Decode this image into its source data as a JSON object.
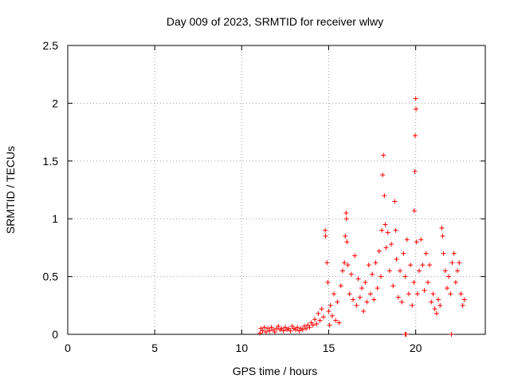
{
  "chart_data": {
    "type": "scatter",
    "title": "Day 009 of 2023, SRMTID for receiver wlwy",
    "xlabel": "GPS time / hours",
    "ylabel": "SRMTID / TECUs",
    "xlim": [
      0,
      24
    ],
    "ylim": [
      0,
      2.5
    ],
    "xticks": [
      0,
      5,
      10,
      15,
      20
    ],
    "xtick_labels": [
      "0",
      "5",
      "10",
      "15",
      "20"
    ],
    "yticks": [
      0,
      0.5,
      1,
      1.5,
      2,
      2.5
    ],
    "ytick_labels": [
      "0",
      "0.5",
      "1",
      "1.5",
      "2",
      "2.5"
    ],
    "grid": true,
    "marker": "+",
    "color": "#ff0000",
    "series": [
      {
        "name": "SRMTID",
        "points": [
          [
            11.05,
            0.01
          ],
          [
            11.1,
            0.05
          ],
          [
            11.2,
            0.03
          ],
          [
            11.3,
            0.06
          ],
          [
            11.4,
            0.02
          ],
          [
            11.5,
            0.05
          ],
          [
            11.6,
            0.03
          ],
          [
            11.7,
            0.06
          ],
          [
            11.8,
            0.04
          ],
          [
            11.9,
            0.02
          ],
          [
            12.0,
            0.05
          ],
          [
            12.1,
            0.07
          ],
          [
            12.2,
            0.04
          ],
          [
            12.3,
            0.05
          ],
          [
            12.4,
            0.03
          ],
          [
            12.5,
            0.06
          ],
          [
            12.6,
            0.04
          ],
          [
            12.7,
            0.05
          ],
          [
            12.8,
            0.03
          ],
          [
            12.9,
            0.07
          ],
          [
            13.0,
            0.05
          ],
          [
            13.1,
            0.04
          ],
          [
            13.2,
            0.06
          ],
          [
            13.3,
            0.03
          ],
          [
            13.4,
            0.05
          ],
          [
            13.5,
            0.04
          ],
          [
            13.6,
            0.07
          ],
          [
            13.7,
            0.05
          ],
          [
            13.8,
            0.08
          ],
          [
            13.9,
            0.06
          ],
          [
            14.0,
            0.1
          ],
          [
            14.1,
            0.08
          ],
          [
            14.2,
            0.13
          ],
          [
            14.3,
            0.09
          ],
          [
            14.4,
            0.18
          ],
          [
            14.5,
            0.12
          ],
          [
            14.6,
            0.22
          ],
          [
            14.7,
            0.15
          ],
          [
            14.8,
            0.9
          ],
          [
            14.82,
            0.85
          ],
          [
            14.9,
            0.62
          ],
          [
            14.95,
            0.45
          ],
          [
            15.0,
            0.2
          ],
          [
            15.05,
            0.08
          ],
          [
            15.1,
            0.25
          ],
          [
            15.2,
            0.16
          ],
          [
            15.3,
            0.35
          ],
          [
            15.4,
            0.12
          ],
          [
            15.5,
            0.28
          ],
          [
            15.6,
            0.1
          ],
          [
            15.7,
            0.42
          ],
          [
            15.8,
            0.55
          ],
          [
            15.9,
            0.62
          ],
          [
            15.95,
            0.85
          ],
          [
            16.0,
            1.05
          ],
          [
            16.02,
            1.0
          ],
          [
            16.05,
            0.8
          ],
          [
            16.1,
            0.6
          ],
          [
            16.2,
            0.35
          ],
          [
            16.3,
            0.52
          ],
          [
            16.4,
            0.3
          ],
          [
            16.5,
            0.68
          ],
          [
            16.6,
            0.25
          ],
          [
            16.7,
            0.48
          ],
          [
            16.8,
            0.32
          ],
          [
            16.9,
            0.4
          ],
          [
            17.0,
            0.2
          ],
          [
            17.1,
            0.45
          ],
          [
            17.2,
            0.28
          ],
          [
            17.3,
            0.6
          ],
          [
            17.4,
            0.35
          ],
          [
            17.5,
            0.52
          ],
          [
            17.6,
            0.3
          ],
          [
            17.7,
            0.62
          ],
          [
            17.8,
            0.4
          ],
          [
            17.9,
            0.72
          ],
          [
            18.0,
            0.5
          ],
          [
            18.05,
            0.9
          ],
          [
            18.1,
            1.38
          ],
          [
            18.15,
            1.55
          ],
          [
            18.2,
            1.2
          ],
          [
            18.25,
            0.95
          ],
          [
            18.3,
            0.75
          ],
          [
            18.4,
            0.88
          ],
          [
            18.5,
            0.55
          ],
          [
            18.6,
            0.78
          ],
          [
            18.7,
            0.42
          ],
          [
            18.8,
            1.15
          ],
          [
            18.85,
            0.9
          ],
          [
            18.9,
            0.65
          ],
          [
            19.0,
            0.32
          ],
          [
            19.1,
            0.55
          ],
          [
            19.2,
            0.28
          ],
          [
            19.3,
            0.7
          ],
          [
            19.4,
            0.5
          ],
          [
            19.5,
            0.82
          ],
          [
            19.6,
            0.35
          ],
          [
            19.7,
            0.6
          ],
          [
            19.8,
            0.25
          ],
          [
            19.9,
            0.45
          ],
          [
            19.92,
            1.07
          ],
          [
            19.95,
            1.41
          ],
          [
            19.97,
            1.72
          ],
          [
            20.0,
            2.04
          ],
          [
            20.02,
            1.95
          ],
          [
            20.05,
            0.8
          ],
          [
            20.1,
            0.35
          ],
          [
            20.2,
            0.55
          ],
          [
            20.3,
            0.82
          ],
          [
            20.4,
            0.6
          ],
          [
            20.5,
            0.38
          ],
          [
            20.6,
            0.7
          ],
          [
            20.7,
            0.45
          ],
          [
            20.8,
            0.6
          ],
          [
            20.9,
            0.28
          ],
          [
            21.0,
            0.35
          ],
          [
            21.1,
            0.22
          ],
          [
            21.2,
            0.18
          ],
          [
            21.3,
            0.3
          ],
          [
            21.4,
            0.25
          ],
          [
            21.5,
            0.92
          ],
          [
            21.55,
            0.85
          ],
          [
            21.6,
            0.7
          ],
          [
            21.7,
            0.55
          ],
          [
            21.8,
            0.4
          ],
          [
            21.9,
            0.5
          ],
          [
            22.0,
            0.35
          ],
          [
            22.1,
            0.62
          ],
          [
            22.2,
            0.7
          ],
          [
            22.3,
            0.45
          ],
          [
            22.4,
            0.55
          ],
          [
            22.5,
            0.62
          ],
          [
            22.6,
            0.35
          ],
          [
            22.7,
            0.25
          ],
          [
            22.8,
            0.3
          ],
          [
            19.4,
            0.0
          ],
          [
            19.45,
            0.0
          ],
          [
            22.05,
            0.0
          ]
        ]
      }
    ]
  }
}
